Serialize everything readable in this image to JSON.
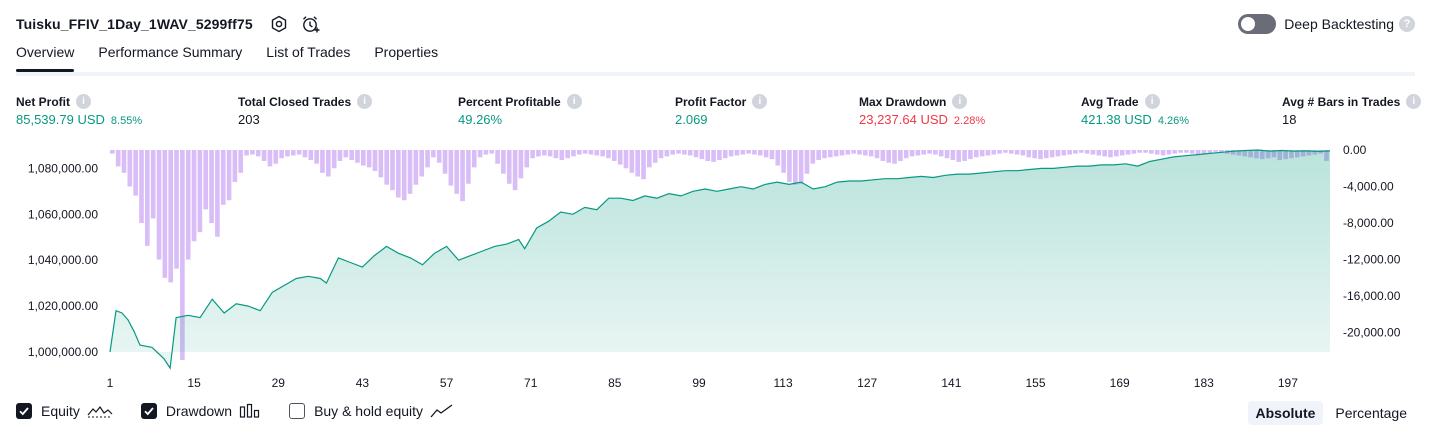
{
  "header": {
    "strategy_name": "Tuisku_FFIV_1Day_1WAV_5299ff75",
    "icons": [
      "settings-icon",
      "alert-clock-icon"
    ],
    "deep_backtesting_label": "Deep Backtesting",
    "deep_backtesting_enabled": false
  },
  "tabs": [
    {
      "label": "Overview",
      "active": true
    },
    {
      "label": "Performance Summary",
      "active": false
    },
    {
      "label": "List of Trades",
      "active": false
    },
    {
      "label": "Properties",
      "active": false
    }
  ],
  "metrics": [
    {
      "label": "Net Profit",
      "value": "85,539.79 USD",
      "pct": "8.55%",
      "color": "green"
    },
    {
      "label": "Total Closed Trades",
      "value": "203",
      "pct": "",
      "color": "default"
    },
    {
      "label": "Percent Profitable",
      "value": "49.26%",
      "pct": "",
      "color": "green"
    },
    {
      "label": "Profit Factor",
      "value": "2.069",
      "pct": "",
      "color": "green"
    },
    {
      "label": "Max Drawdown",
      "value": "23,237.64 USD",
      "pct": "2.28%",
      "color": "red"
    },
    {
      "label": "Avg Trade",
      "value": "421.38 USD",
      "pct": "4.26%",
      "color": "green"
    },
    {
      "label": "Avg # Bars in Trades",
      "value": "18",
      "pct": "",
      "color": "default"
    }
  ],
  "chart_data": {
    "type": "area",
    "x_ticks": [
      1,
      15,
      29,
      43,
      57,
      71,
      85,
      99,
      113,
      127,
      141,
      155,
      169,
      183,
      197
    ],
    "x_range": [
      1,
      204
    ],
    "left_axis": {
      "ticks": [
        "1,080,000.00",
        "1,060,000.00",
        "1,040,000.00",
        "1,020,000.00",
        "1,000,000.00"
      ],
      "tick_values": [
        1080000,
        1060000,
        1040000,
        1020000,
        1000000
      ],
      "range": [
        1000000,
        1088000
      ]
    },
    "right_axis": {
      "ticks": [
        "0.00",
        "-4,000.00",
        "-8,000.00",
        "-12,000.00",
        "-16,000.00",
        "-20,000.00"
      ],
      "tick_values": [
        0,
        -4000,
        -8000,
        -12000,
        -16000,
        -20000
      ],
      "range": [
        -23000,
        0
      ]
    },
    "series": [
      {
        "name": "Equity",
        "axis": "left",
        "color": "#089981",
        "points": [
          [
            1,
            1000000
          ],
          [
            2,
            1018000
          ],
          [
            3,
            1017000
          ],
          [
            4,
            1014000
          ],
          [
            5,
            1009000
          ],
          [
            6,
            1003000
          ],
          [
            8,
            1002000
          ],
          [
            10,
            997000
          ],
          [
            11,
            993000
          ],
          [
            12,
            1015000
          ],
          [
            14,
            1016000
          ],
          [
            16,
            1015000
          ],
          [
            18,
            1023000
          ],
          [
            20,
            1017000
          ],
          [
            22,
            1021000
          ],
          [
            24,
            1020000
          ],
          [
            26,
            1018000
          ],
          [
            28,
            1026000
          ],
          [
            30,
            1029000
          ],
          [
            32,
            1032000
          ],
          [
            34,
            1033000
          ],
          [
            36,
            1032000
          ],
          [
            37,
            1030000
          ],
          [
            39,
            1041000
          ],
          [
            41,
            1039000
          ],
          [
            43,
            1037000
          ],
          [
            45,
            1042000
          ],
          [
            47,
            1046000
          ],
          [
            49,
            1043000
          ],
          [
            51,
            1041000
          ],
          [
            53,
            1038000
          ],
          [
            55,
            1043000
          ],
          [
            57,
            1046000
          ],
          [
            59,
            1040000
          ],
          [
            61,
            1042000
          ],
          [
            63,
            1044000
          ],
          [
            65,
            1046000
          ],
          [
            67,
            1047000
          ],
          [
            69,
            1049000
          ],
          [
            70,
            1045000
          ],
          [
            72,
            1054000
          ],
          [
            74,
            1057000
          ],
          [
            76,
            1061000
          ],
          [
            78,
            1060000
          ],
          [
            80,
            1063000
          ],
          [
            82,
            1062000
          ],
          [
            84,
            1067000
          ],
          [
            86,
            1067000
          ],
          [
            88,
            1066000
          ],
          [
            90,
            1068000
          ],
          [
            92,
            1067000
          ],
          [
            94,
            1069000
          ],
          [
            96,
            1068000
          ],
          [
            98,
            1070000
          ],
          [
            100,
            1071000
          ],
          [
            102,
            1070000
          ],
          [
            104,
            1071000
          ],
          [
            106,
            1072000
          ],
          [
            108,
            1071000
          ],
          [
            110,
            1073000
          ],
          [
            112,
            1074000
          ],
          [
            114,
            1073000
          ],
          [
            116,
            1074000
          ],
          [
            118,
            1071000
          ],
          [
            120,
            1072000
          ],
          [
            122,
            1074000
          ],
          [
            124,
            1074500
          ],
          [
            126,
            1074500
          ],
          [
            128,
            1075000
          ],
          [
            130,
            1075500
          ],
          [
            132,
            1075500
          ],
          [
            134,
            1076000
          ],
          [
            136,
            1076500
          ],
          [
            138,
            1076000
          ],
          [
            140,
            1077000
          ],
          [
            142,
            1077500
          ],
          [
            144,
            1077500
          ],
          [
            146,
            1078000
          ],
          [
            148,
            1078500
          ],
          [
            150,
            1079000
          ],
          [
            152,
            1079000
          ],
          [
            154,
            1079500
          ],
          [
            156,
            1080000
          ],
          [
            158,
            1080000
          ],
          [
            160,
            1080500
          ],
          [
            162,
            1081000
          ],
          [
            164,
            1081000
          ],
          [
            166,
            1081500
          ],
          [
            168,
            1081500
          ],
          [
            170,
            1082000
          ],
          [
            172,
            1081000
          ],
          [
            174,
            1083000
          ],
          [
            176,
            1084000
          ],
          [
            178,
            1085000
          ],
          [
            180,
            1085500
          ],
          [
            182,
            1086000
          ],
          [
            184,
            1086500
          ],
          [
            186,
            1087000
          ],
          [
            188,
            1087500
          ],
          [
            190,
            1087800
          ],
          [
            192,
            1088000
          ],
          [
            194,
            1087500
          ],
          [
            196,
            1087800
          ],
          [
            198,
            1087500
          ],
          [
            200,
            1087600
          ],
          [
            202,
            1087400
          ],
          [
            204,
            1087600
          ]
        ]
      },
      {
        "name": "Drawdown",
        "axis": "right",
        "color": "#d9bdf7",
        "values": [
          -400,
          -1800,
          -2500,
          -4000,
          -5000,
          -8000,
          -10500,
          -7500,
          -12000,
          -14000,
          -14500,
          -13000,
          -23000,
          -12000,
          -10000,
          -9000,
          -6500,
          -8000,
          -9500,
          -6000,
          -5500,
          -3500,
          -2500,
          -600,
          -500,
          -700,
          -1200,
          -1800,
          -1500,
          -900,
          -700,
          -600,
          -500,
          -800,
          -1100,
          -1500,
          -2500,
          -2900,
          -2000,
          -1200,
          -800,
          -1100,
          -1400,
          -1700,
          -1900,
          -2300,
          -3000,
          -3800,
          -4400,
          -5200,
          -5500,
          -4800,
          -3800,
          -2900,
          -1900,
          -800,
          -1400,
          -2600,
          -3900,
          -4800,
          -5600,
          -3700,
          -1900,
          -800,
          -500,
          -400,
          -1500,
          -2600,
          -3700,
          -4400,
          -3100,
          -1900,
          -900,
          -700,
          -600,
          -700,
          -900,
          -1100,
          -900,
          -700,
          -500,
          -400,
          -500,
          -600,
          -700,
          -900,
          -1200,
          -1600,
          -2000,
          -2500,
          -2900,
          -3200,
          -1900,
          -1400,
          -900,
          -700,
          -500,
          -400,
          -500,
          -600,
          -800,
          -1000,
          -1200,
          -1300,
          -1100,
          -900,
          -700,
          -600,
          -500,
          -400,
          -500,
          -600,
          -800,
          -1000,
          -1700,
          -2500,
          -3500,
          -3800,
          -3700,
          -2600,
          -1500,
          -1100,
          -900,
          -800,
          -700,
          -600,
          -500,
          -400,
          -500,
          -600,
          -700,
          -900,
          -1200,
          -1400,
          -1500,
          -1200,
          -900,
          -700,
          -600,
          -500,
          -400,
          -500,
          -700,
          -900,
          -1100,
          -1300,
          -1200,
          -1000,
          -800,
          -700,
          -600,
          -500,
          -400,
          -300,
          -400,
          -500,
          -600,
          -800,
          -900,
          -1000,
          -900,
          -800,
          -700,
          -600,
          -500,
          -400,
          -300,
          -400,
          -500,
          -600,
          -700,
          -800,
          -700,
          -600,
          -500,
          -400,
          -300,
          -300,
          -400,
          -500,
          -600,
          -500,
          -400,
          -300,
          -300,
          -400,
          -500,
          -400,
          -300,
          -200,
          -300,
          -400,
          -500,
          -600,
          -700,
          -800,
          -900,
          -1000,
          -900,
          -800,
          -1100,
          -1000,
          -900,
          -800,
          -700,
          -600,
          -500,
          -400,
          -1200
        ]
      },
      {
        "name": "Buy & hold equity",
        "axis": "left",
        "visible": false,
        "points": []
      }
    ]
  },
  "legend": [
    {
      "label": "Equity",
      "checked": true,
      "icon": "equity-line-icon"
    },
    {
      "label": "Drawdown",
      "checked": true,
      "icon": "drawdown-bars-icon"
    },
    {
      "label": "Buy & hold equity",
      "checked": false,
      "icon": "buy-hold-line-icon"
    }
  ],
  "modes": [
    {
      "label": "Absolute",
      "active": true
    },
    {
      "label": "Percentage",
      "active": false
    }
  ]
}
